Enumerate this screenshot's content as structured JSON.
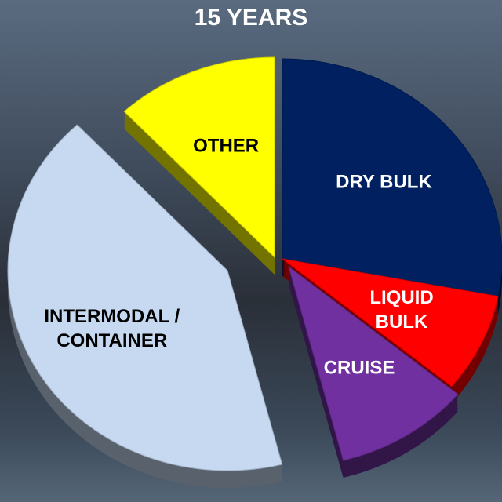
{
  "chart_data": {
    "type": "pie",
    "title": "15 YEARS",
    "categories": [
      "DRY BULK",
      "LIQUID BULK",
      "CRUISE",
      "INTERMODAL / CONTAINER",
      "OTHER"
    ],
    "values": [
      28,
      8,
      10,
      42,
      12
    ],
    "colors": [
      "#002060",
      "#ff0000",
      "#7030a0",
      "#c6d9f1",
      "#ffff00"
    ]
  }
}
